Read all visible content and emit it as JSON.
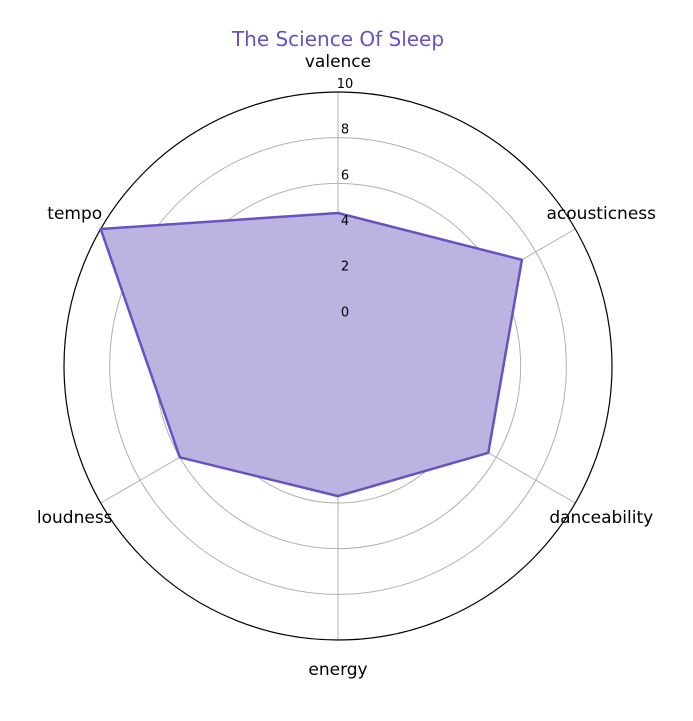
{
  "chart_data": {
    "type": "radar",
    "title": "The Science Of Sleep",
    "axes": [
      "valence",
      "acousticness",
      "danceability",
      "energy",
      "loudness",
      "tempo"
    ],
    "values": [
      4.7,
      7.3,
      5.6,
      3.7,
      6.0,
      10.0
    ],
    "r_range": [
      -2,
      10
    ],
    "r_ticks": [
      0,
      2,
      4,
      6,
      8,
      10
    ],
    "grid": true,
    "colors": {
      "title": "#6a51c0",
      "line": "#6a51c0",
      "fill": "#bcb3e0",
      "grid": "#b0b0b0",
      "outer": "#000000"
    }
  }
}
